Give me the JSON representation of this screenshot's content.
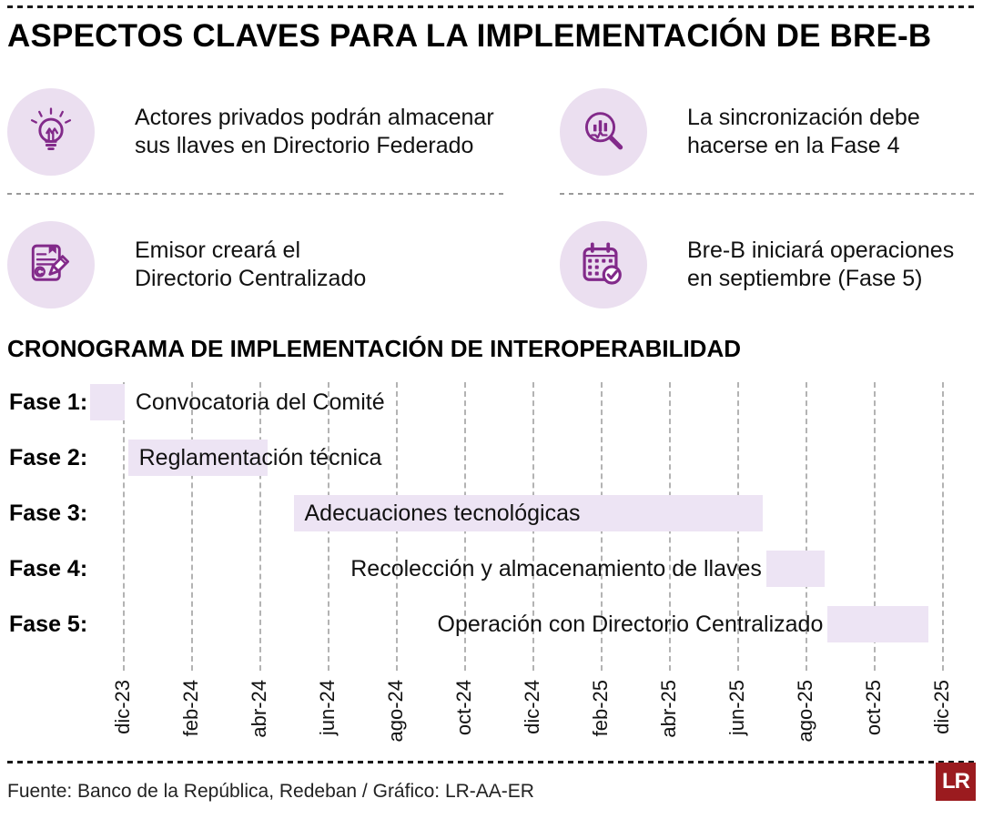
{
  "title": "ASPECTOS CLAVES PARA LA IMPLEMENTACIÓN DE BRE-B",
  "facts": [
    {
      "icon": "lightbulb-icon",
      "text": "Actores privados podrán almacenar sus llaves en Directorio Federado"
    },
    {
      "icon": "magnifier-chart-icon",
      "text": "La sincronización debe hacerse en la Fase 4"
    },
    {
      "icon": "document-copyright-pencil-icon",
      "text": "Emisor creará el Directorio Centralizado"
    },
    {
      "icon": "calendar-check-icon",
      "text": "Bre-B iniciará operaciones en septiembre (Fase 5)"
    }
  ],
  "chart_data": {
    "type": "gantt",
    "title": "CRONOGRAMA DE IMPLEMENTACIÓN DE INTEROPERABILIDAD",
    "x_ticks": [
      {
        "label": "dic-23",
        "month": 0
      },
      {
        "label": "feb-24",
        "month": 2
      },
      {
        "label": "abr-24",
        "month": 4
      },
      {
        "label": "jun-24",
        "month": 6
      },
      {
        "label": "ago-24",
        "month": 8
      },
      {
        "label": "oct-24",
        "month": 10
      },
      {
        "label": "dic-24",
        "month": 12
      },
      {
        "label": "feb-25",
        "month": 14
      },
      {
        "label": "abr-25",
        "month": 16
      },
      {
        "label": "jun-25",
        "month": 18
      },
      {
        "label": "ago-25",
        "month": 20
      },
      {
        "label": "oct-25",
        "month": 22
      },
      {
        "label": "dic-25",
        "month": 24
      }
    ],
    "month_zero_label": "dic-23",
    "phases": [
      {
        "label": "Fase 1:",
        "task": "Convocatoria del Comité",
        "start_month": -0.95,
        "end_month": 0.05,
        "task_position": "after-bar"
      },
      {
        "label": "Fase 2:",
        "task": "Reglamentación técnica",
        "start_month": 0.15,
        "end_month": 4.25,
        "task_position": "over-bar-start"
      },
      {
        "label": "Fase 3:",
        "task": "Adecuaciones tecnológicas",
        "start_month": 5.0,
        "end_month": 18.75,
        "task_position": "over-bar-start"
      },
      {
        "label": "Fase 4:",
        "task": "Recolección y almacenamiento de llaves",
        "start_month": 18.85,
        "end_month": 20.55,
        "task_position": "before-bar"
      },
      {
        "label": "Fase 5:",
        "task": "Operación con Directorio Centralizado",
        "start_month": 20.65,
        "end_month": 23.6,
        "task_position": "before-bar"
      }
    ],
    "bar_color": "#ede4f4",
    "gridline_color": "#b3b3b3"
  },
  "footer": {
    "source": "Fuente: Banco de la República, Redeban / Gráfico: LR-AA-ER",
    "logo_text": "LR"
  },
  "colors": {
    "purple": "#822a8a",
    "icon_bg": "#ebdff0",
    "bar": "#ede4f4",
    "logo_red": "#9b1b1f"
  }
}
